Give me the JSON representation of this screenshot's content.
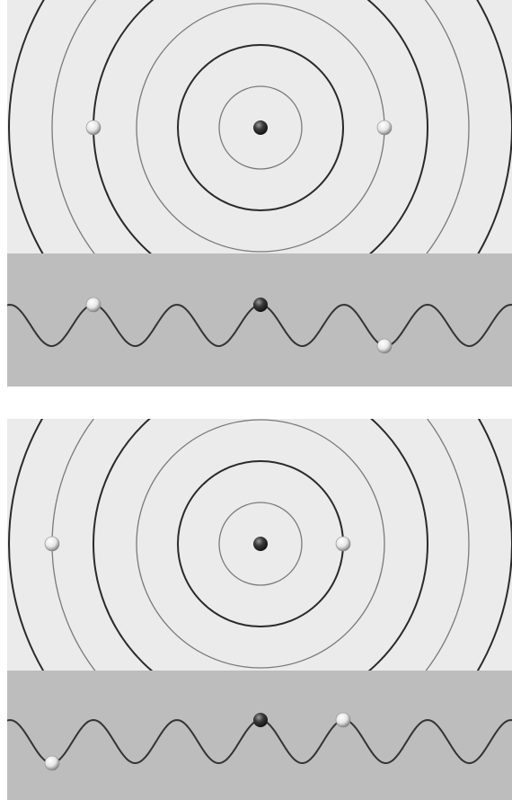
{
  "colors": {
    "background": "#ffffff",
    "top_view_fill": "#ebebeb",
    "side_view_fill": "#bdbdbd",
    "dark_ring": "#2a2a2a",
    "light_ring": "#7a7a7a",
    "wave_line": "#333333",
    "source_ball": "#222222",
    "test_ball": "#ffffff"
  },
  "panels": [
    {
      "name": "panel-1",
      "top_view": {
        "icons": [
          "source-ball-icon",
          "test-ball-left-icon",
          "test-ball-right-icon"
        ]
      },
      "side_view": {
        "icons": [
          "wave-curve",
          "source-ball-icon",
          "test-ball-left-icon",
          "test-ball-right-icon"
        ]
      }
    },
    {
      "name": "panel-2",
      "top_view": {
        "icons": [
          "source-ball-icon",
          "test-ball-left-icon",
          "test-ball-right-icon"
        ]
      },
      "side_view": {
        "icons": [
          "wave-curve",
          "source-ball-icon",
          "test-ball-left-icon",
          "test-ball-right-icon"
        ]
      }
    }
  ]
}
